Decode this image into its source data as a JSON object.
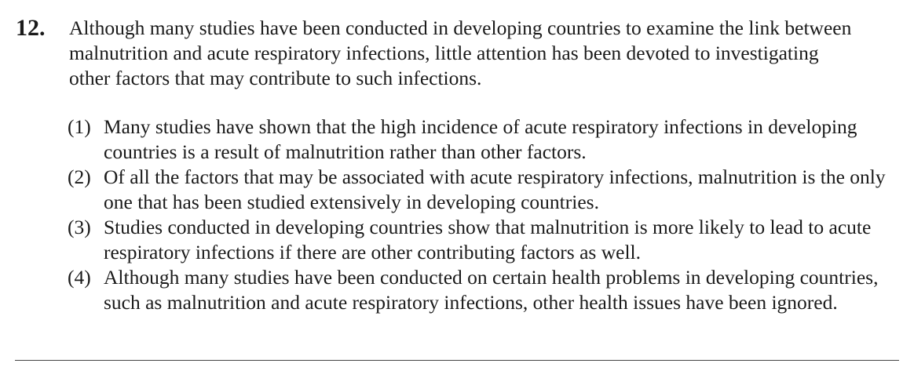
{
  "question": {
    "number": "12.",
    "stem": "Although many studies have been conducted in developing countries to examine the link between malnutrition and acute respiratory infections, little attention has been devoted to investigating other factors that may contribute to such infections.",
    "options": [
      {
        "label": "(1)",
        "text": "Many studies have shown that the high incidence of acute respiratory infections in developing countries is a result of malnutrition rather than other factors."
      },
      {
        "label": "(2)",
        "text": "Of all the factors that may be associated with acute respiratory infections, malnutrition is the only one that has been studied extensively in developing countries."
      },
      {
        "label": "(3)",
        "text": "Studies conducted in developing countries show that malnutrition is more likely to lead to acute respiratory infections if there are other contributing factors as well."
      },
      {
        "label": "(4)",
        "text": "Although many studies have been conducted on certain health problems in developing countries, such as malnutrition and acute respiratory infections, other health issues have been ignored."
      }
    ]
  }
}
